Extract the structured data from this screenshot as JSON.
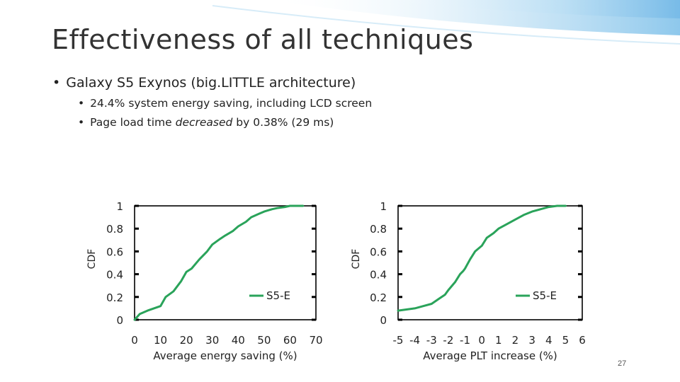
{
  "slide": {
    "title": "Effectiveness of all techniques",
    "bullet": "Galaxy S5 Exynos (big.LITTLE architecture)",
    "sub_bullets": [
      {
        "pre": "24.4% system energy saving, including LCD screen",
        "em": "",
        "post": ""
      },
      {
        "pre": "Page load time ",
        "em": "decreased",
        "post": " by 0.38% (29 ms)"
      }
    ],
    "page_number": "27"
  },
  "colors": {
    "series": "#2aa35a",
    "axis": "#000000",
    "text": "#222222",
    "accent_swoosh": "#a9d4ef"
  },
  "chart_data": [
    {
      "type": "line",
      "title": "",
      "xlabel": "Average energy saving (%)",
      "ylabel": "CDF",
      "xlim": [
        0,
        70
      ],
      "ylim": [
        0,
        1
      ],
      "x_ticks": [
        "0",
        "10",
        "20",
        "30",
        "40",
        "50",
        "60",
        "70"
      ],
      "y_ticks": [
        "0",
        "0.2",
        "0.4",
        "0.6",
        "0.8",
        "1"
      ],
      "legend": "middle-right",
      "series": [
        {
          "name": "S5-E",
          "x": [
            0,
            2,
            5,
            10,
            12,
            15,
            18,
            20,
            22,
            25,
            28,
            30,
            33,
            35,
            38,
            40,
            43,
            45,
            48,
            50,
            53,
            55,
            58,
            60,
            63,
            65
          ],
          "y": [
            0,
            0.05,
            0.08,
            0.12,
            0.2,
            0.25,
            0.34,
            0.42,
            0.45,
            0.53,
            0.6,
            0.66,
            0.71,
            0.74,
            0.78,
            0.82,
            0.86,
            0.9,
            0.93,
            0.95,
            0.97,
            0.98,
            0.99,
            1.0,
            1.0,
            1.0
          ]
        }
      ]
    },
    {
      "type": "line",
      "title": "",
      "xlabel": "Average PLT increase (%)",
      "ylabel": "CDF",
      "xlim": [
        -5,
        6
      ],
      "ylim": [
        0,
        1
      ],
      "x_ticks": [
        "-5",
        "-4",
        "-3",
        "-2",
        "-1",
        "0",
        "1",
        "2",
        "3",
        "4",
        "5",
        "6"
      ],
      "y_ticks": [
        "0",
        "0.2",
        "0.4",
        "0.6",
        "0.8",
        "1"
      ],
      "legend": "middle-right",
      "series": [
        {
          "name": "S5-E",
          "x": [
            -5,
            -4.5,
            -4,
            -3.5,
            -3,
            -2.5,
            -2.2,
            -2,
            -1.6,
            -1.3,
            -1.1,
            -1,
            -0.7,
            -0.4,
            0,
            0.3,
            0.7,
            1,
            1.5,
            2,
            2.5,
            3,
            3.5,
            4,
            4.5,
            5
          ],
          "y": [
            0.08,
            0.09,
            0.1,
            0.12,
            0.14,
            0.19,
            0.22,
            0.26,
            0.33,
            0.4,
            0.43,
            0.45,
            0.53,
            0.6,
            0.65,
            0.72,
            0.76,
            0.8,
            0.84,
            0.88,
            0.92,
            0.95,
            0.97,
            0.99,
            1.0,
            1.0
          ]
        }
      ]
    }
  ]
}
